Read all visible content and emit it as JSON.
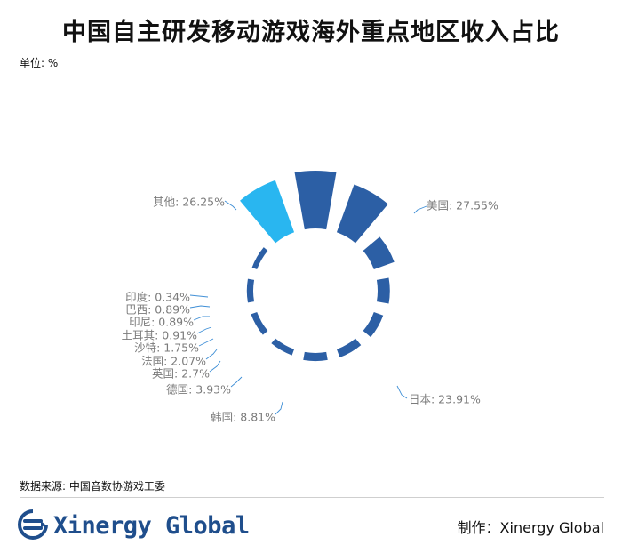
{
  "header": {
    "title": "中国自主研发移动游戏海外重点地区收入占比",
    "unit": "单位: %"
  },
  "chart_data": {
    "type": "pie",
    "variant": "rose",
    "unit": "%",
    "categories": [
      "美国",
      "日本",
      "韩国",
      "德国",
      "英国",
      "法国",
      "沙特",
      "土耳其",
      "印尼",
      "巴西",
      "印度",
      "其他"
    ],
    "values": [
      27.55,
      23.91,
      8.81,
      3.93,
      2.7,
      2.07,
      1.75,
      0.91,
      0.89,
      0.89,
      0.34,
      26.25
    ],
    "labels": [
      "美国: 27.55%",
      "日本: 23.91%",
      "韩国: 8.81%",
      "德国: 3.93%",
      "英国: 2.7%",
      "法国: 2.07%",
      "沙特: 1.75%",
      "土耳其: 0.91%",
      "印尼: 0.89%",
      "巴西: 0.89%",
      "印度: 0.34%",
      "其他: 26.25%"
    ],
    "colors": [
      "#2c5fa5",
      "#2c5fa5",
      "#2c5fa5",
      "#2c5fa5",
      "#2c5fa5",
      "#2c5fa5",
      "#2c5fa5",
      "#2c5fa5",
      "#2c5fa5",
      "#2c5fa5",
      "#2c5fa5",
      "#29b6f0"
    ]
  },
  "footer": {
    "source": "数据来源: 中国音数协游戏工委",
    "logo_text": "Xinergy Global",
    "logo_icon": "xinergy-logo-icon",
    "credit": "制作：Xinergy Global"
  }
}
